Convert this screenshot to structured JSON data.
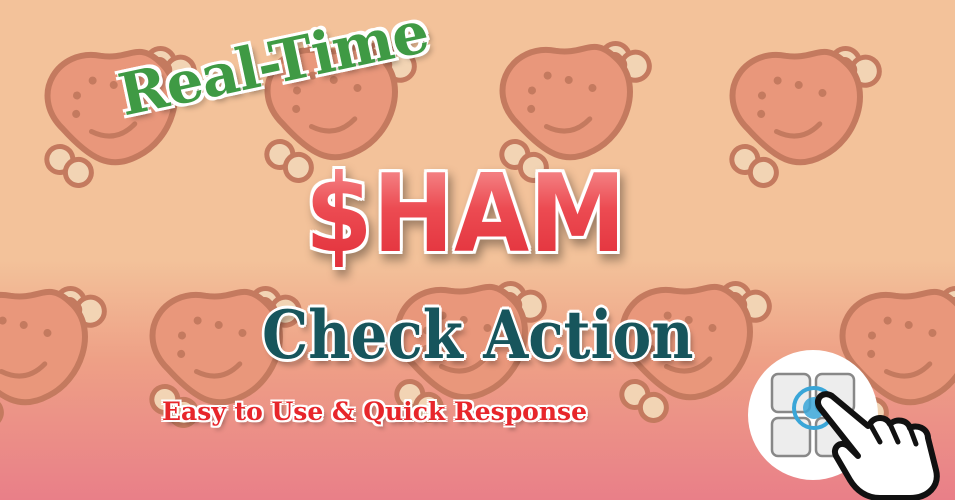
{
  "banner": {
    "line1": "Real-Time",
    "line2": "$HAM",
    "line3": "Check Action",
    "tagline": "Easy to Use & Quick Response"
  },
  "icons": {
    "background": "ham-drumstick-icon",
    "app": "app-grid-icon",
    "pointer": "pointing-hand-icon"
  },
  "colors": {
    "bg_top": "#f3c29a",
    "bg_bottom": "#e97f88",
    "ham": "#e9977b",
    "ham_outline": "#c47a5f",
    "line1": "#3f9a44",
    "line2": "#e02a35",
    "line3": "#17555c",
    "tagline": "#e7262b",
    "accent": "#3aa6d8"
  }
}
